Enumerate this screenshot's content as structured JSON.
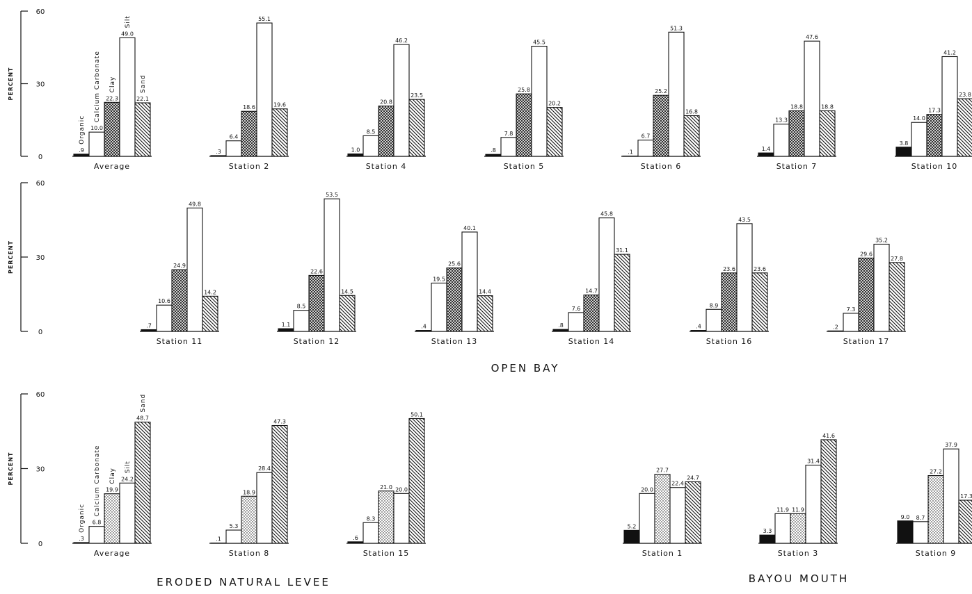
{
  "chart_data": [
    {
      "type": "bar",
      "ylabel": "PERCENT",
      "ylim": [
        0,
        60
      ],
      "yticks": [
        0,
        30,
        60
      ],
      "categories": [
        "Organic",
        "Calcium Carbonate",
        "Clay",
        "Silt",
        "Sand"
      ],
      "styles": [
        "solid",
        "open",
        "crosshatch",
        "open",
        "hatch"
      ],
      "panels": [
        {
          "name": "Average",
          "values": [
            0.9,
            10.0,
            22.3,
            49.0,
            22.1
          ],
          "value_labels": [
            ".9",
            "10.0",
            "22.3",
            "49.0",
            "22.1"
          ]
        },
        {
          "name": "Station 2",
          "values": [
            0.3,
            6.4,
            18.6,
            55.1,
            19.6
          ],
          "value_labels": [
            ".3",
            "6.4",
            "18.6",
            "55.1",
            "19.6"
          ]
        },
        {
          "name": "Station 4",
          "values": [
            1.0,
            8.5,
            20.8,
            46.2,
            23.5
          ],
          "value_labels": [
            "1.0",
            "8.5",
            "20.8",
            "46.2",
            "23.5"
          ]
        },
        {
          "name": "Station 5",
          "values": [
            0.8,
            7.8,
            25.8,
            45.5,
            20.2
          ],
          "value_labels": [
            ".8",
            "7.8",
            "25.8",
            "45.5",
            "20.2"
          ]
        },
        {
          "name": "Station 6",
          "values": [
            0.1,
            6.7,
            25.2,
            51.3,
            16.8
          ],
          "value_labels": [
            ".1",
            "6.7",
            "25.2",
            "51.3",
            "16.8"
          ]
        },
        {
          "name": "Station 7",
          "values": [
            1.4,
            13.3,
            18.8,
            47.6,
            18.8
          ],
          "value_labels": [
            "1.4",
            "13.3",
            "18.8",
            "47.6",
            "18.8"
          ]
        },
        {
          "name": "Station 10",
          "values": [
            3.8,
            14.0,
            17.3,
            41.2,
            23.8
          ],
          "value_labels": [
            "3.8",
            "14.0",
            "17.3",
            "41.2",
            "23.8"
          ]
        }
      ]
    },
    {
      "type": "bar",
      "ylabel": "PERCENT",
      "ylim": [
        0,
        60
      ],
      "yticks": [
        0,
        30,
        60
      ],
      "styles": [
        "solid",
        "open",
        "crosshatch",
        "open",
        "hatch"
      ],
      "caption": "OPEN BAY",
      "panels": [
        {
          "name": "Station 11",
          "values": [
            0.7,
            10.6,
            24.9,
            49.8,
            14.2
          ],
          "value_labels": [
            ".7",
            "10.6",
            "24.9",
            "49.8",
            "14.2"
          ]
        },
        {
          "name": "Station 12",
          "values": [
            1.1,
            8.5,
            22.6,
            53.5,
            14.5
          ],
          "value_labels": [
            "1.1",
            "8.5",
            "22.6",
            "53.5",
            "14.5"
          ]
        },
        {
          "name": "Station 13",
          "values": [
            0.4,
            19.5,
            25.6,
            40.1,
            14.4
          ],
          "value_labels": [
            ".4",
            "19.5",
            "25.6",
            "40.1",
            "14.4"
          ]
        },
        {
          "name": "Station 14",
          "values": [
            0.8,
            7.6,
            14.7,
            45.8,
            31.1
          ],
          "value_labels": [
            ".8",
            "7.6",
            "14.7",
            "45.8",
            "31.1"
          ]
        },
        {
          "name": "Station 16",
          "values": [
            0.4,
            8.9,
            23.6,
            43.5,
            23.6
          ],
          "value_labels": [
            ".4",
            "8.9",
            "23.6",
            "43.5",
            "23.6"
          ]
        },
        {
          "name": "Station 17",
          "values": [
            0.2,
            7.3,
            29.6,
            35.2,
            27.8
          ],
          "value_labels": [
            ".2",
            "7.3",
            "29.6",
            "35.2",
            "27.8"
          ]
        }
      ]
    },
    {
      "type": "bar",
      "ylabel": "PERCENT",
      "ylim": [
        0,
        60
      ],
      "yticks": [
        0,
        30,
        60
      ],
      "categories": [
        "Organic",
        "Calcium Carbonate",
        "Clay",
        "Silt",
        "Sand"
      ],
      "styles": [
        "solid",
        "open",
        "dots",
        "open",
        "hatch"
      ],
      "captions": [
        "ERODED NATURAL LEVEE",
        "BAYOU MOUTH"
      ],
      "panels": [
        {
          "name": "Average",
          "values": [
            0.3,
            6.8,
            19.9,
            24.2,
            48.7
          ],
          "value_labels": [
            ".3",
            "6.8",
            "19.9",
            "24.2",
            "48.7"
          ]
        },
        {
          "name": "Station 8",
          "values": [
            0.1,
            5.3,
            18.9,
            28.4,
            47.3
          ],
          "value_labels": [
            ".1",
            "5.3",
            "18.9",
            "28.4",
            "47.3"
          ]
        },
        {
          "name": "Station 15",
          "values": [
            0.6,
            8.3,
            21.0,
            20.0,
            50.1
          ],
          "value_labels": [
            ".6",
            "8.3",
            "21.0",
            "20.0",
            "50.1"
          ]
        },
        {
          "name": "Station 1",
          "values": [
            5.2,
            20.0,
            27.7,
            22.4,
            24.7
          ],
          "value_labels": [
            "5.2",
            "20.0",
            "27.7",
            "22.4",
            "24.7"
          ]
        },
        {
          "name": "Station 3",
          "values": [
            3.3,
            11.9,
            11.9,
            31.4,
            41.6
          ],
          "value_labels": [
            "3.3",
            "11.9",
            "11.9",
            "31.4",
            "41.6"
          ]
        },
        {
          "name": "Station 9",
          "values": [
            9.0,
            8.7,
            27.2,
            37.9,
            17.3
          ],
          "value_labels": [
            "9.0",
            "8.7",
            "27.2",
            "37.9",
            "17.3"
          ]
        }
      ]
    }
  ]
}
